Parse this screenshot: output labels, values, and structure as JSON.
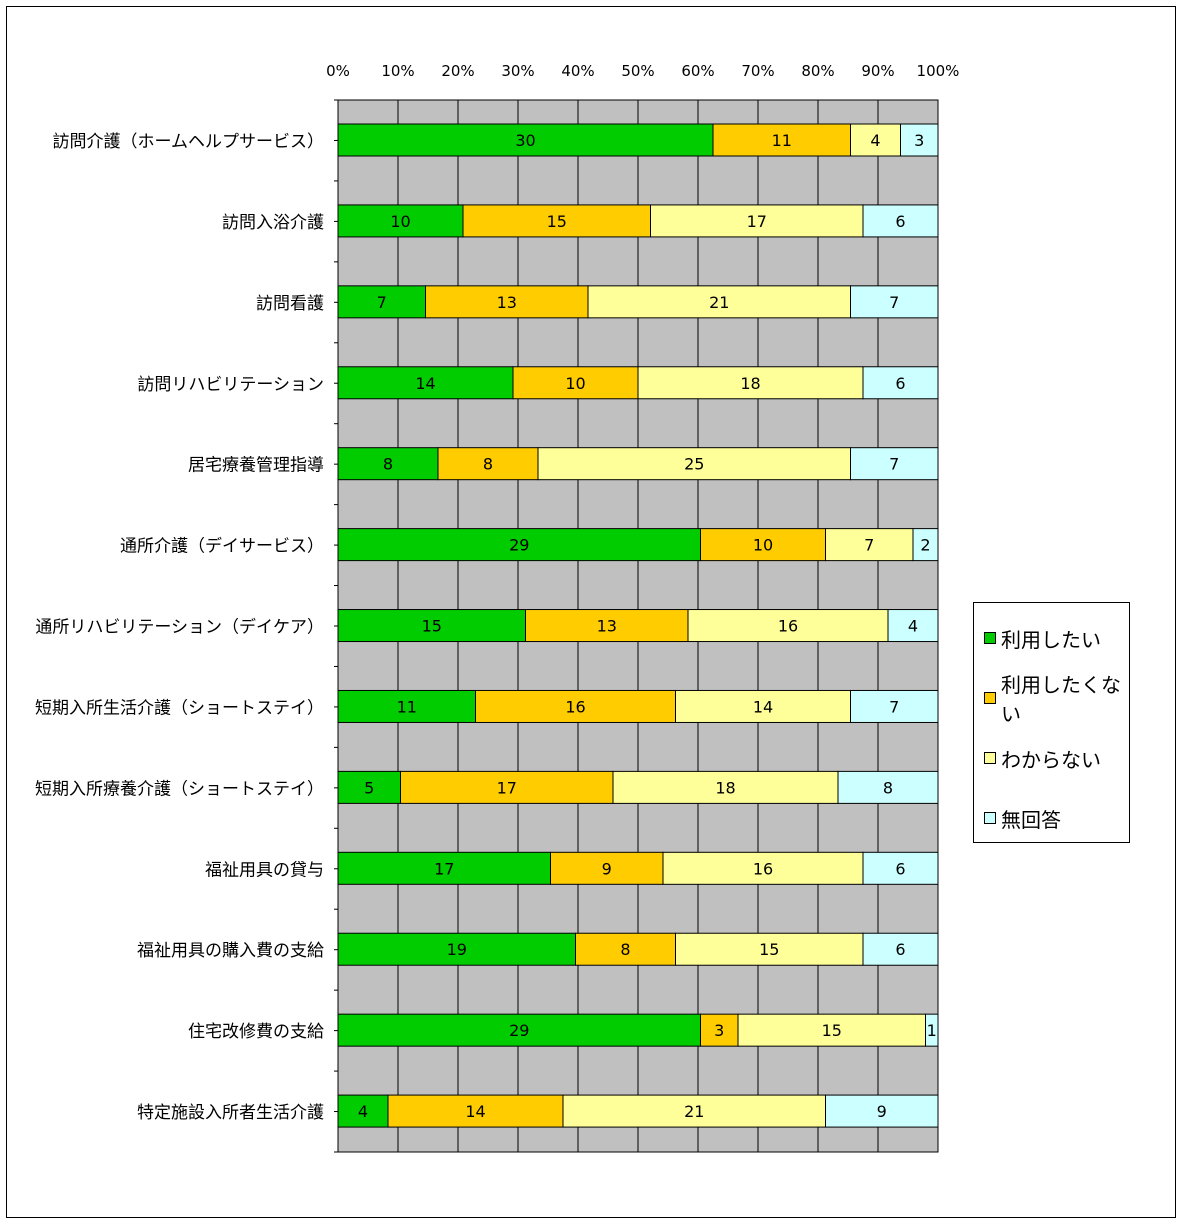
{
  "chart_data": {
    "type": "bar",
    "orientation": "horizontal",
    "stacked": "percent",
    "categories": [
      "訪問介護（ホームヘルプサービス）",
      "訪問入浴介護",
      "訪問看護",
      "訪問リハビリテーション",
      "居宅療養管理指導",
      "通所介護（デイサービス）",
      "通所リハビリテーション（デイケア）",
      "短期入所生活介護（ショートステイ）",
      "短期入所療養介護（ショートステイ）",
      "福祉用具の貸与",
      "福祉用具の購入費の支給",
      "住宅改修費の支給",
      "特定施設入所者生活介護"
    ],
    "series": [
      {
        "name": "利用したい",
        "color": "#00cc00",
        "values": [
          30,
          10,
          7,
          14,
          8,
          29,
          15,
          11,
          5,
          17,
          19,
          29,
          4
        ]
      },
      {
        "name": "利用したくない",
        "color": "#ffcc00",
        "values": [
          11,
          15,
          13,
          10,
          8,
          10,
          13,
          16,
          17,
          9,
          8,
          3,
          14
        ]
      },
      {
        "name": "わからない",
        "color": "#ffff99",
        "values": [
          4,
          17,
          21,
          18,
          25,
          7,
          16,
          14,
          18,
          16,
          15,
          15,
          21
        ]
      },
      {
        "name": "無回答",
        "color": "#ccffff",
        "values": [
          3,
          6,
          7,
          6,
          7,
          2,
          4,
          7,
          8,
          6,
          6,
          1,
          9
        ]
      }
    ],
    "x_ticks": [
      "0%",
      "10%",
      "20%",
      "30%",
      "40%",
      "50%",
      "60%",
      "70%",
      "80%",
      "90%",
      "100%"
    ],
    "xlim": [
      0,
      100
    ],
    "grid": true,
    "plot_background": "#c0c0c0",
    "legend_position": "right"
  }
}
